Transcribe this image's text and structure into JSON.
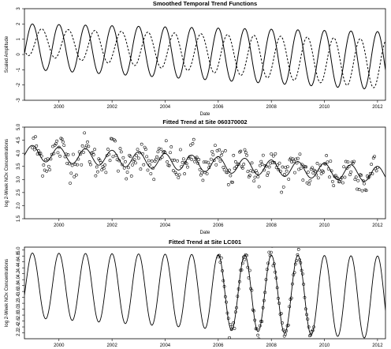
{
  "chart_data": [
    {
      "type": "line",
      "title": "Smoothed Temporal Trend Functions",
      "xlabel": "Date",
      "ylabel": "Scaled Amplitude",
      "xlim": [
        1998.7,
        2012.3
      ],
      "ylim": [
        -3.0,
        3.0
      ],
      "xticks": [
        2000,
        2002,
        2004,
        2006,
        2008,
        2010,
        2012
      ],
      "yticks": [
        -3,
        -2,
        -1,
        0,
        1,
        2,
        3
      ],
      "series": [
        {
          "style": "solid",
          "amplitude_start": 1.5,
          "amplitude_end": 1.9,
          "level_start": 0.5,
          "level_end": -0.4,
          "period_years": 1.0,
          "phase_peak": 0.0
        },
        {
          "style": "dashed",
          "amplitude_start": 0.9,
          "amplitude_end": 1.6,
          "level_start": 0.8,
          "level_end": -0.6,
          "period_years": 1.0,
          "phase_peak": 0.35
        }
      ]
    },
    {
      "type": "scatter",
      "title": "Fitted Trend at Site 060370002",
      "xlabel": "Date",
      "ylabel": "log 2-Week NOx Concentrations",
      "xlim": [
        1998.7,
        2012.3
      ],
      "ylim": [
        1.5,
        5.0
      ],
      "xticks": [
        2000,
        2002,
        2004,
        2006,
        2008,
        2010,
        2012
      ],
      "yticks": [
        1.5,
        2.0,
        2.5,
        3.0,
        3.5,
        4.0,
        4.5,
        5.0
      ],
      "points_x_range": [
        1999.0,
        2012.0
      ],
      "points_per_year": 26,
      "trend": {
        "level_start": 4.0,
        "level_end": 3.2,
        "amplitude": 0.3,
        "phase_peak": 0.0
      },
      "scatter_sd": 0.3
    },
    {
      "type": "scatter",
      "title": "Fitted Trend at Site LC001",
      "xlabel": "Date",
      "ylabel": "log 2-Week NOx Concentrations",
      "xlim": [
        1998.7,
        2012.3
      ],
      "ylim": [
        2.0,
        5.1
      ],
      "xticks": [
        2000,
        2002,
        2004,
        2006,
        2008,
        2010,
        2012
      ],
      "yticks": [
        2.2,
        2.4,
        2.6,
        2.8,
        3.0,
        3.2,
        3.4,
        3.6,
        3.8,
        4.0,
        4.2,
        4.4,
        4.6,
        4.8,
        5.0
      ],
      "points_x_range": [
        2006.0,
        2009.6
      ],
      "points_per_year": 26,
      "trend": {
        "level_start": 3.8,
        "level_end": 3.4,
        "amplitude_start": 1.1,
        "amplitude_end": 1.4,
        "phase_peak": 0.0
      },
      "scatter_sd": 0.12
    }
  ]
}
